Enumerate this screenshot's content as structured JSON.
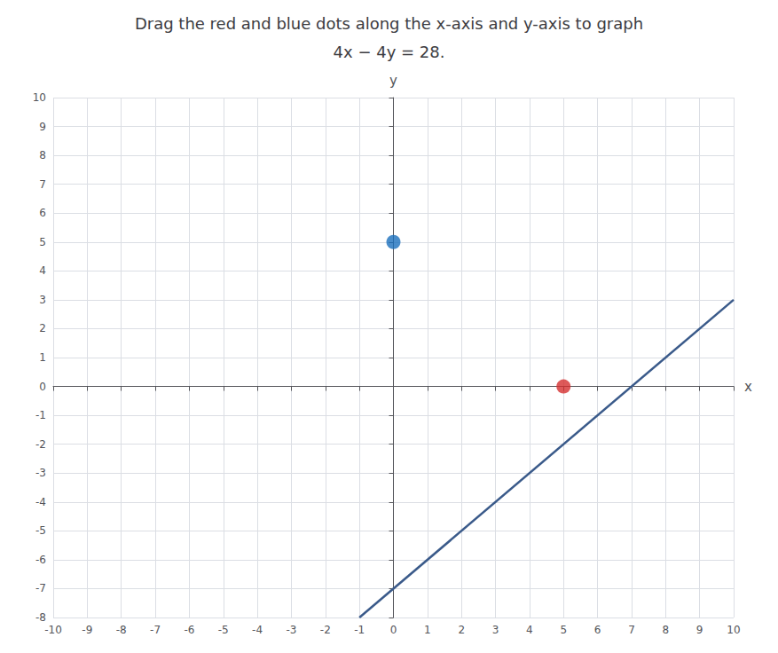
{
  "chart_data": {
    "type": "scatter",
    "title": "Drag the red and blue dots along the x-axis and y-axis to graph",
    "subtitle": "4x − 4y = 28.",
    "x_label": "x",
    "y_label": "y",
    "series": [
      {
        "type": "line",
        "color": "#3a5a8a",
        "x": [
          -1,
          10
        ],
        "values": [
          -8,
          3
        ]
      },
      {
        "type": "scatter",
        "color": "#1a6fbd",
        "x": [
          0
        ],
        "values": [
          5
        ]
      },
      {
        "type": "scatter",
        "color": "#d43030",
        "x": [
          5
        ],
        "values": [
          0
        ]
      }
    ],
    "xlim": [
      -10,
      10
    ],
    "ylim": [
      -8,
      10
    ],
    "xticks": [
      -10,
      -9,
      -8,
      -7,
      -6,
      -5,
      -4,
      -3,
      -2,
      -1,
      0,
      1,
      2,
      3,
      4,
      5,
      6,
      7,
      8,
      9,
      10
    ],
    "yticks": [
      -8,
      -7,
      -6,
      -5,
      -4,
      -3,
      -2,
      -1,
      0,
      1,
      2,
      3,
      4,
      5,
      6,
      7,
      8,
      9,
      10
    ],
    "grid": true
  }
}
